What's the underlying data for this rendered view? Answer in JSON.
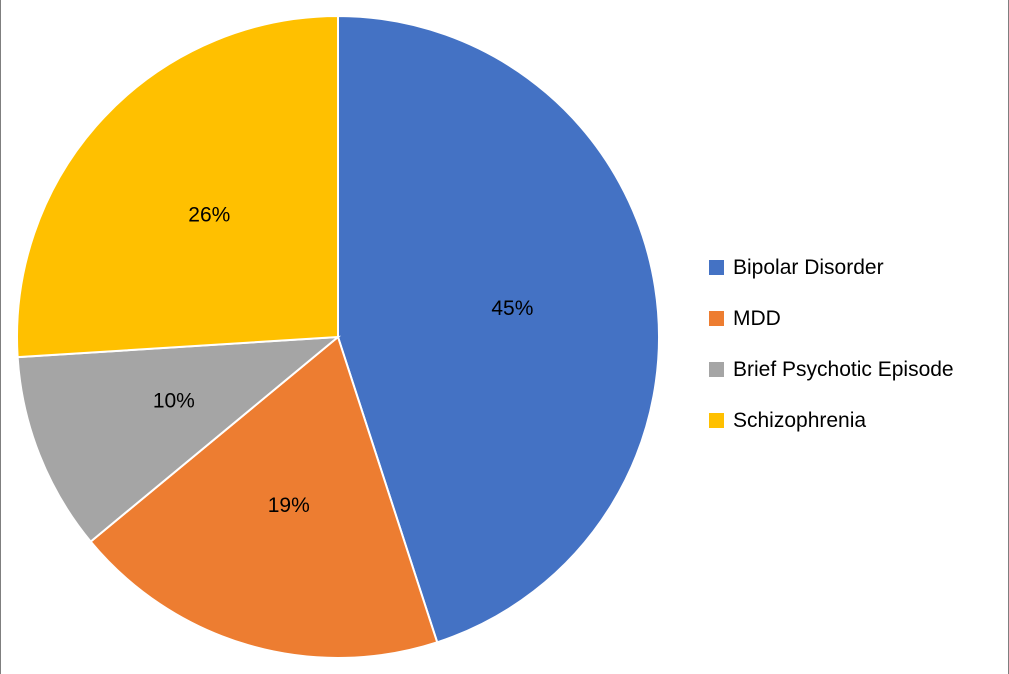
{
  "chart_data": {
    "type": "pie",
    "title": "",
    "legend_position": "right",
    "slices": [
      {
        "name": "Bipolar Disorder",
        "value": 45,
        "label": "45%",
        "color": "#4472C4"
      },
      {
        "name": "MDD",
        "value": 19,
        "label": "19%",
        "color": "#ED7D31"
      },
      {
        "name": "Brief Psychotic Episode",
        "value": 10,
        "label": "10%",
        "color": "#A5A5A5"
      },
      {
        "name": "Schizophrenia",
        "value": 26,
        "label": "26%",
        "color": "#FFC000"
      }
    ]
  }
}
